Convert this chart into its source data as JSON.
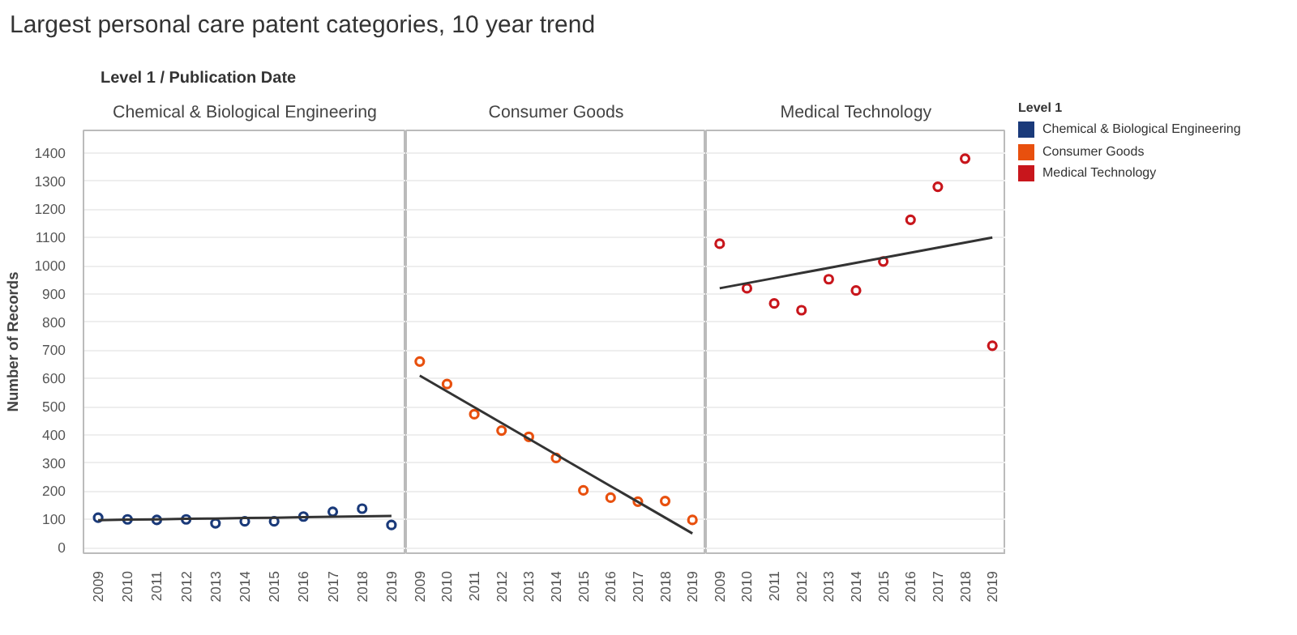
{
  "chart_data": [
    {
      "type": "scatter",
      "title": "Largest personal care patent categories, 10 year trend",
      "annotations": [
        "Level 1 / Publication Date"
      ],
      "subtitle": "Chemical & Biological Engineering",
      "ylabel": "Number of Records",
      "x": [
        2009,
        2010,
        2011,
        2012,
        2013,
        2014,
        2015,
        2016,
        2017,
        2018,
        2019
      ],
      "xlim": [
        2008.5,
        2019.5
      ],
      "xticks": [
        2009,
        2010,
        2011,
        2012,
        2013,
        2014,
        2015,
        2016,
        2017,
        2018,
        2019
      ],
      "ylim": [
        -20,
        1480
      ],
      "yticks": [
        0,
        100,
        200,
        300,
        400,
        500,
        600,
        700,
        800,
        900,
        1000,
        1100,
        1200,
        1300,
        1400
      ],
      "grid": "y",
      "marker": "circle",
      "legend": "right",
      "legend_title": "Level 1",
      "series": [
        {
          "name": "Chemical & Biological Engineering",
          "color": "#1a3a7a",
          "values": [
            106,
            100,
            98,
            100,
            86,
            93,
            93,
            110,
            127,
            138,
            80
          ]
        },
        {
          "type": "line",
          "marker": "none",
          "color": "#333333",
          "values": [
            97,
            99,
            100,
            102,
            103,
            105,
            106,
            108,
            109,
            111,
            112
          ]
        }
      ]
    },
    {
      "type": "scatter",
      "subtitle": "Consumer Goods",
      "x": [
        2009,
        2010,
        2011,
        2012,
        2013,
        2014,
        2015,
        2016,
        2017,
        2018,
        2019
      ],
      "xlim": [
        2008.5,
        2019.5
      ],
      "xticks": [
        2009,
        2010,
        2011,
        2012,
        2013,
        2014,
        2015,
        2016,
        2017,
        2018,
        2019
      ],
      "ylim": [
        -20,
        1480
      ],
      "yticks": [
        0,
        100,
        200,
        300,
        400,
        500,
        600,
        700,
        800,
        900,
        1000,
        1100,
        1200,
        1300,
        1400
      ],
      "grid": "y",
      "marker": "circle",
      "tick_labels": "x",
      "legend": "right",
      "series": [
        {
          "name": "Consumer Goods",
          "color": "#e8500e",
          "values": [
            660,
            580,
            473,
            415,
            393,
            318,
            203,
            177,
            163,
            165,
            98
          ]
        },
        {
          "type": "line",
          "marker": "none",
          "color": "#333333",
          "values": [
            610,
            554,
            498,
            442,
            386,
            330,
            274,
            218,
            162,
            106,
            50
          ]
        }
      ]
    },
    {
      "type": "scatter",
      "subtitle": "Medical Technology",
      "x": [
        2009,
        2010,
        2011,
        2012,
        2013,
        2014,
        2015,
        2016,
        2017,
        2018,
        2019
      ],
      "xlim": [
        2008.5,
        2019.5
      ],
      "xticks": [
        2009,
        2010,
        2011,
        2012,
        2013,
        2014,
        2015,
        2016,
        2017,
        2018,
        2019
      ],
      "ylim": [
        -20,
        1480
      ],
      "yticks": [
        0,
        100,
        200,
        300,
        400,
        500,
        600,
        700,
        800,
        900,
        1000,
        1100,
        1200,
        1300,
        1400
      ],
      "grid": "y",
      "marker": "circle",
      "tick_labels": "x",
      "legend": "right",
      "series": [
        {
          "name": "Medical Technology",
          "color": "#c8161c",
          "values": [
            1078,
            920,
            866,
            842,
            952,
            912,
            1015,
            1163,
            1280,
            1380,
            716
          ]
        },
        {
          "type": "line",
          "marker": "none",
          "color": "#333333",
          "values": [
            920,
            938,
            956,
            974,
            992,
            1010,
            1028,
            1046,
            1064,
            1082,
            1100
          ]
        }
      ]
    }
  ]
}
